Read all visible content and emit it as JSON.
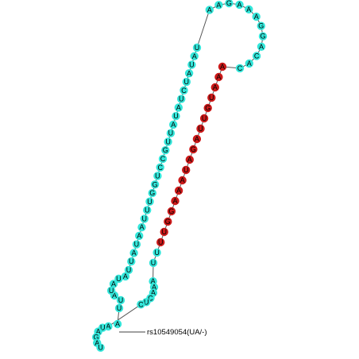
{
  "diagram": {
    "annotation": "rs10549054(UA/-)",
    "colors": {
      "normal": "#33e6da",
      "highlight": "#cc1a1a",
      "backbone": "#555555"
    },
    "left_strand": [
      "A",
      "U",
      "U",
      "A",
      "U",
      "A",
      "U",
      "A",
      "U",
      "U",
      "A",
      "U",
      "A",
      "A",
      "U",
      "U",
      "U",
      "G",
      "G",
      "U",
      "C",
      "C",
      "G",
      "U",
      "U",
      "A",
      "U",
      "A",
      "U",
      "C",
      "U",
      "A",
      "U",
      "A",
      "U"
    ],
    "terminal_loop": [
      "A",
      "A",
      "G",
      "A",
      "A",
      "A",
      "G",
      "G",
      "A",
      "C",
      "A",
      "C"
    ],
    "right_strand": [
      "A",
      "A",
      "A",
      "U",
      "G",
      "U",
      "U",
      "A",
      "G",
      "A",
      "U",
      "A",
      "A",
      "A",
      "G",
      "G",
      "U",
      "U",
      "U",
      "U",
      "A",
      "A",
      "A",
      "C",
      "U",
      "C"
    ],
    "bottom_loop": [
      "A",
      "U",
      "A",
      "G",
      "A",
      "U"
    ],
    "highlight_start": 13,
    "highlight_count": 18
  }
}
